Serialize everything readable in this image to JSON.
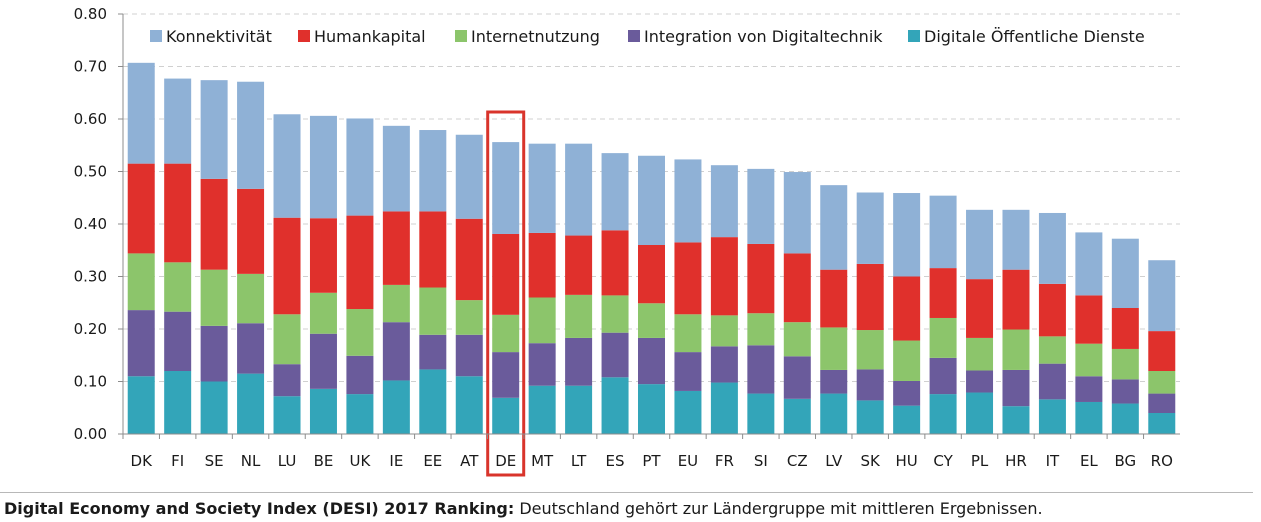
{
  "chart_data": {
    "type": "bar",
    "stacked": true,
    "categories": [
      "DK",
      "FI",
      "SE",
      "NL",
      "LU",
      "BE",
      "UK",
      "IE",
      "EE",
      "AT",
      "DE",
      "MT",
      "LT",
      "ES",
      "PT",
      "EU",
      "FR",
      "SI",
      "CZ",
      "LV",
      "SK",
      "HU",
      "CY",
      "PL",
      "HR",
      "IT",
      "EL",
      "BG",
      "RO"
    ],
    "highlight_category": "DE",
    "ylim": [
      0,
      0.8
    ],
    "yticks": [
      "0.00",
      "0.10",
      "0.20",
      "0.30",
      "0.40",
      "0.50",
      "0.60",
      "0.70",
      "0.80"
    ],
    "grid": "horizontal-dashed",
    "legend_position": "top",
    "series": [
      {
        "name": "Digitale Öffentliche Dienste",
        "color": "#33a5b9",
        "values": [
          0.11,
          0.12,
          0.1,
          0.115,
          0.072,
          0.086,
          0.076,
          0.102,
          0.123,
          0.11,
          0.069,
          0.092,
          0.092,
          0.108,
          0.095,
          0.082,
          0.098,
          0.077,
          0.067,
          0.077,
          0.064,
          0.054,
          0.076,
          0.079,
          0.053,
          0.066,
          0.061,
          0.058,
          0.04
        ]
      },
      {
        "name": "Integration von Digitaltechnik",
        "color": "#6a5b9b",
        "values": [
          0.126,
          0.113,
          0.106,
          0.096,
          0.061,
          0.105,
          0.073,
          0.111,
          0.066,
          0.079,
          0.087,
          0.081,
          0.091,
          0.085,
          0.088,
          0.074,
          0.069,
          0.092,
          0.081,
          0.045,
          0.059,
          0.047,
          0.069,
          0.042,
          0.069,
          0.068,
          0.049,
          0.046,
          0.037
        ]
      },
      {
        "name": "Internetnutzung",
        "color": "#8cc56b",
        "values": [
          0.108,
          0.094,
          0.107,
          0.094,
          0.095,
          0.078,
          0.089,
          0.071,
          0.09,
          0.066,
          0.071,
          0.087,
          0.082,
          0.071,
          0.066,
          0.072,
          0.059,
          0.061,
          0.065,
          0.081,
          0.075,
          0.077,
          0.076,
          0.062,
          0.077,
          0.052,
          0.062,
          0.058,
          0.043
        ]
      },
      {
        "name": "Humankapital",
        "color": "#e0302c",
        "values": [
          0.171,
          0.188,
          0.173,
          0.162,
          0.184,
          0.142,
          0.178,
          0.14,
          0.145,
          0.155,
          0.154,
          0.123,
          0.113,
          0.124,
          0.111,
          0.137,
          0.149,
          0.132,
          0.131,
          0.11,
          0.126,
          0.122,
          0.095,
          0.112,
          0.114,
          0.1,
          0.092,
          0.078,
          0.076
        ]
      },
      {
        "name": "Konnektivität",
        "color": "#8fb1d6",
        "values": [
          0.192,
          0.162,
          0.188,
          0.204,
          0.197,
          0.195,
          0.185,
          0.163,
          0.155,
          0.16,
          0.175,
          0.17,
          0.175,
          0.147,
          0.17,
          0.158,
          0.137,
          0.143,
          0.155,
          0.161,
          0.136,
          0.159,
          0.138,
          0.132,
          0.114,
          0.135,
          0.12,
          0.132,
          0.135
        ]
      }
    ],
    "legend_order": [
      "Konnektivität",
      "Humankapital",
      "Internetnutzung",
      "Integration von Digitaltechnik",
      "Digitale Öffentliche Dienste"
    ]
  },
  "caption": {
    "bold": "Digital Economy and Society Index (DESI) 2017 Ranking:",
    "text": " Deutschland gehört zur Ländergruppe mit mittleren Ergebnissen."
  },
  "colors": {
    "highlight": "#d9342b",
    "axis": "#8c8c8c",
    "grid": "#d0d0d0"
  }
}
